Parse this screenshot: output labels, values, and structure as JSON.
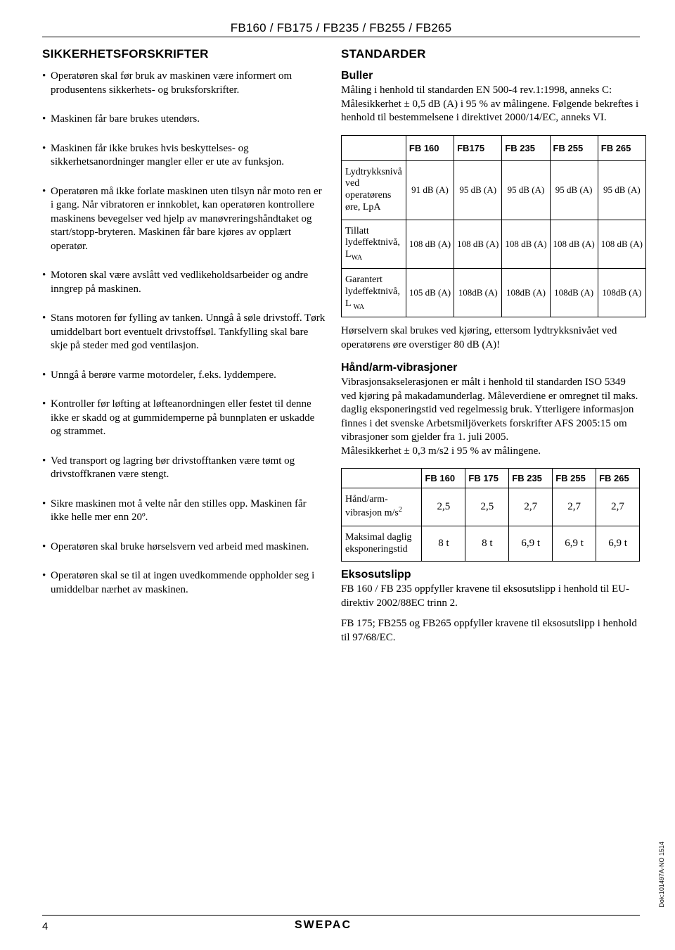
{
  "header": "FB160 / FB175 / FB235 / FB255 / FB265",
  "left": {
    "heading": "SIKKERHETSFORSKRIFTER",
    "bullets": [
      "Operatøren skal før bruk av maskinen være informert om produsentens sikkerhets- og bruksforskrifter.",
      "Maskinen får bare brukes utendørs.",
      "Maskinen får ikke brukes hvis beskyttelses- og sikkerhetsanordninger mangler eller er ute av funksjon.",
      "Operatøren må ikke forlate maskinen uten tilsyn når moto ren er i gang. Når vibratoren er innkoblet, kan operatøren kontrollere maskinens bevegelser ved hjelp av manøvreringshåndtaket og start/stopp-bryteren. Maskinen får bare kjøres av opplært operatør.",
      "Motoren skal være avslått ved vedlikeholdsarbeider og andre inngrep på maskinen.",
      "Stans motoren før fylling av tanken. Unngå å søle drivstoff. Tørk umiddelbart bort eventuelt drivstoffsøl. Tankfylling skal bare skje på steder med god ventilasjon.",
      "Unngå å berøre varme motordeler, f.eks. lyddempere.",
      "Kontroller før løfting at løfteanordningen eller festet til denne ikke er skadd og at gummidemperne på bunnplaten er uskadde og strammet.",
      "Ved transport og lagring bør drivstofftanken være tømt og drivstoffkranen være stengt.",
      "Sikre maskinen mot å velte når den stilles opp. Maskinen får ikke helle mer enn 20º.",
      "Operatøren skal bruke hørselsvern ved arbeid med maskinen.",
      "Operatøren skal se til at ingen uvedkommende oppholder seg i umiddelbar nærhet av maskinen."
    ]
  },
  "right": {
    "heading": "STANDARDER",
    "buller": {
      "heading": "Buller",
      "body": "Måling i henhold til standarden EN 500-4 rev.1:1998, anneks C:\nMålesikkerhet ± 0,5 dB (A) i 95 % av målingene. Følgende bekreftes i henhold til bestemmelsene i direktivet 2000/14/EC, anneks VI."
    },
    "noise_table": {
      "columns": [
        "",
        "FB 160",
        "FB175",
        "FB 235",
        "FB 255",
        "FB 265"
      ],
      "rows": [
        {
          "label": "Lydtrykksnivå ved operatørens øre, LpA",
          "vals": [
            "91 dB (A)",
            "95 dB (A)",
            "95 dB (A)",
            "95 dB (A)",
            "95 dB (A)"
          ]
        },
        {
          "label_html": "Tillatt<br>lydeffektnivå, L<span class=\"sub\">WA</span>",
          "vals": [
            "108 dB (A)",
            "108 dB (A)",
            "108 dB (A)",
            "108 dB (A)",
            "108 dB (A)"
          ]
        },
        {
          "label_html": "Garantert<br>lydeffektnivå,<br>L <span class=\"sub\">WA</span>",
          "vals": [
            "105 dB (A)",
            "108dB (A)",
            "108dB (A)",
            "108dB (A)",
            "108dB (A)"
          ]
        }
      ]
    },
    "hearing_note": "Hørselvern skal brukes ved kjøring, ettersom lydtrykksnivået ved operatørens øre overstiger 80 dB (A)!",
    "vib": {
      "heading": "Hånd/arm-vibrasjoner",
      "body": "Vibrasjonsakselerasjonen er målt i henhold til standarden ISO 5349 ved kjøring på makadamunderlag. Måleverdiene er omregnet til maks. daglig eksponeringstid ved regelmessig bruk. Ytterligere informasjon finnes i det svenske Arbetsmiljöverkets forskrifter AFS 2005:15 om vibrasjoner som gjelder fra 1. juli 2005.\nMålesikkerhet ± 0,3 m/s2 i 95 % av målingene."
    },
    "vib_table": {
      "columns": [
        "",
        "FB 160",
        "FB 175",
        "FB 235",
        "FB 255",
        "FB 265"
      ],
      "rows": [
        {
          "label_html": "Hånd/arm-<br>vibrasjon m/s<span class=\"sub\" style=\"vertical-align:super\">2</span>",
          "vals": [
            "2,5",
            "2,5",
            "2,7",
            "2,7",
            "2,7"
          ]
        },
        {
          "label": "Maksimal daglig eksponeringstid",
          "vals": [
            "8 t",
            "8 t",
            "6,9 t",
            "6,9 t",
            "6,9 t"
          ]
        }
      ]
    },
    "eksos": {
      "heading": "Eksosutslipp",
      "p1": "FB 160 / FB 235 oppfyller kravene til eksosutslipp i henhold til EU-direktiv 2002/88EC trinn 2.",
      "p2": "FB 175; FB255 og FB265 oppfyller kravene til eksosutslipp i henhold til 97/68/EC."
    }
  },
  "footer": {
    "page": "4",
    "logo": "swepac",
    "doc": "Dok:101497A-NO 1514"
  }
}
